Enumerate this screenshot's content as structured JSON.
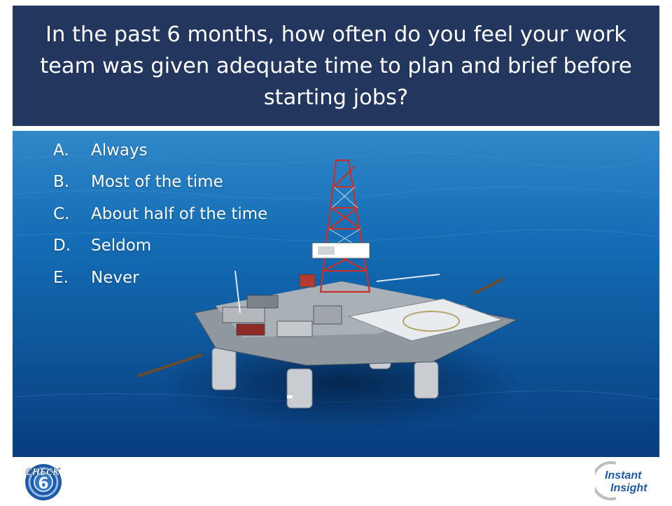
{
  "slide": {
    "question": "In the past 6 months, how often do you feel your work team was  given adequate time to plan and brief before starting jobs?",
    "answers": [
      {
        "letter": "A.",
        "text": "Always"
      },
      {
        "letter": "B.",
        "text": "Most of the time"
      },
      {
        "letter": "C.",
        "text": "About half of the time"
      },
      {
        "letter": "D.",
        "text": "Seldom"
      },
      {
        "letter": "E.",
        "text": "Never"
      }
    ]
  },
  "logos": {
    "left_text": "CHECK",
    "left_number": "6",
    "right_line1": "Instant",
    "right_line2": "Insight"
  },
  "colors": {
    "title_bar": "#22365e",
    "ocean": "#0f4f96",
    "logo_blue": "#1f5aa6"
  }
}
